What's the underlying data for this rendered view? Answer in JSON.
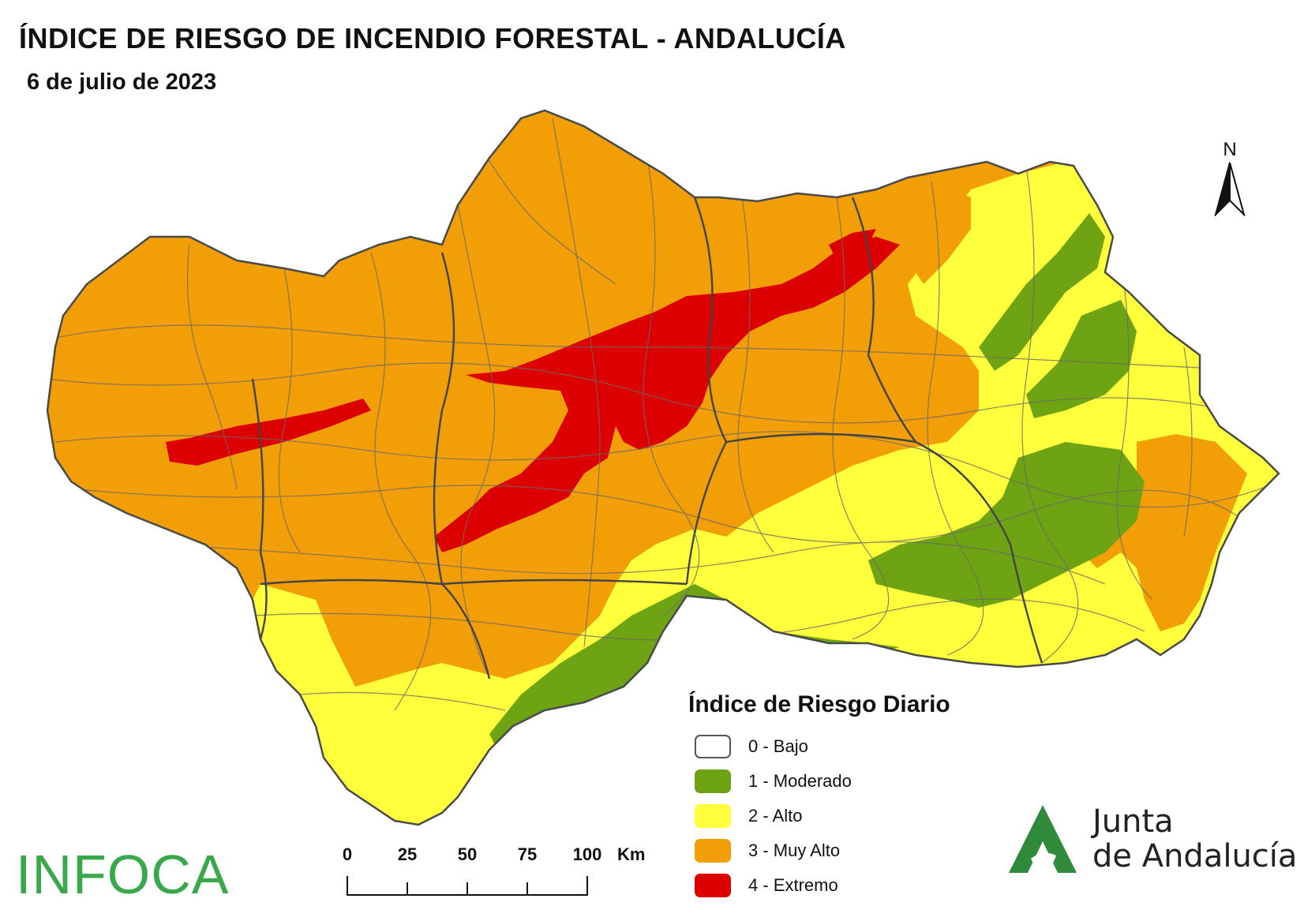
{
  "title": "ÍNDICE DE RIESGO DE INCENDIO FORESTAL - ANDALUCÍA",
  "date": "6 de julio de 2023",
  "north_label": "N",
  "legend": {
    "title": "Índice de Riesgo Diario",
    "items": [
      {
        "label": "0 - Bajo",
        "color": "#ffffff"
      },
      {
        "label": "1 - Moderado",
        "color": "#6ea413"
      },
      {
        "label": "2 - Alto",
        "color": "#ffff3c"
      },
      {
        "label": "3 - Muy Alto",
        "color": "#f29e07"
      },
      {
        "label": "4 - Extremo",
        "color": "#dd0000"
      }
    ]
  },
  "scale": {
    "ticks": [
      "0",
      "25",
      "50",
      "75",
      "100"
    ],
    "unit": "Km"
  },
  "brand_left": "INFOCA",
  "brand_right_line1": "Junta",
  "brand_right_line2": "de Andalucía",
  "colors": {
    "border": "#555555",
    "infoca": "#39a84a",
    "junta_green": "#2f8a3c"
  }
}
